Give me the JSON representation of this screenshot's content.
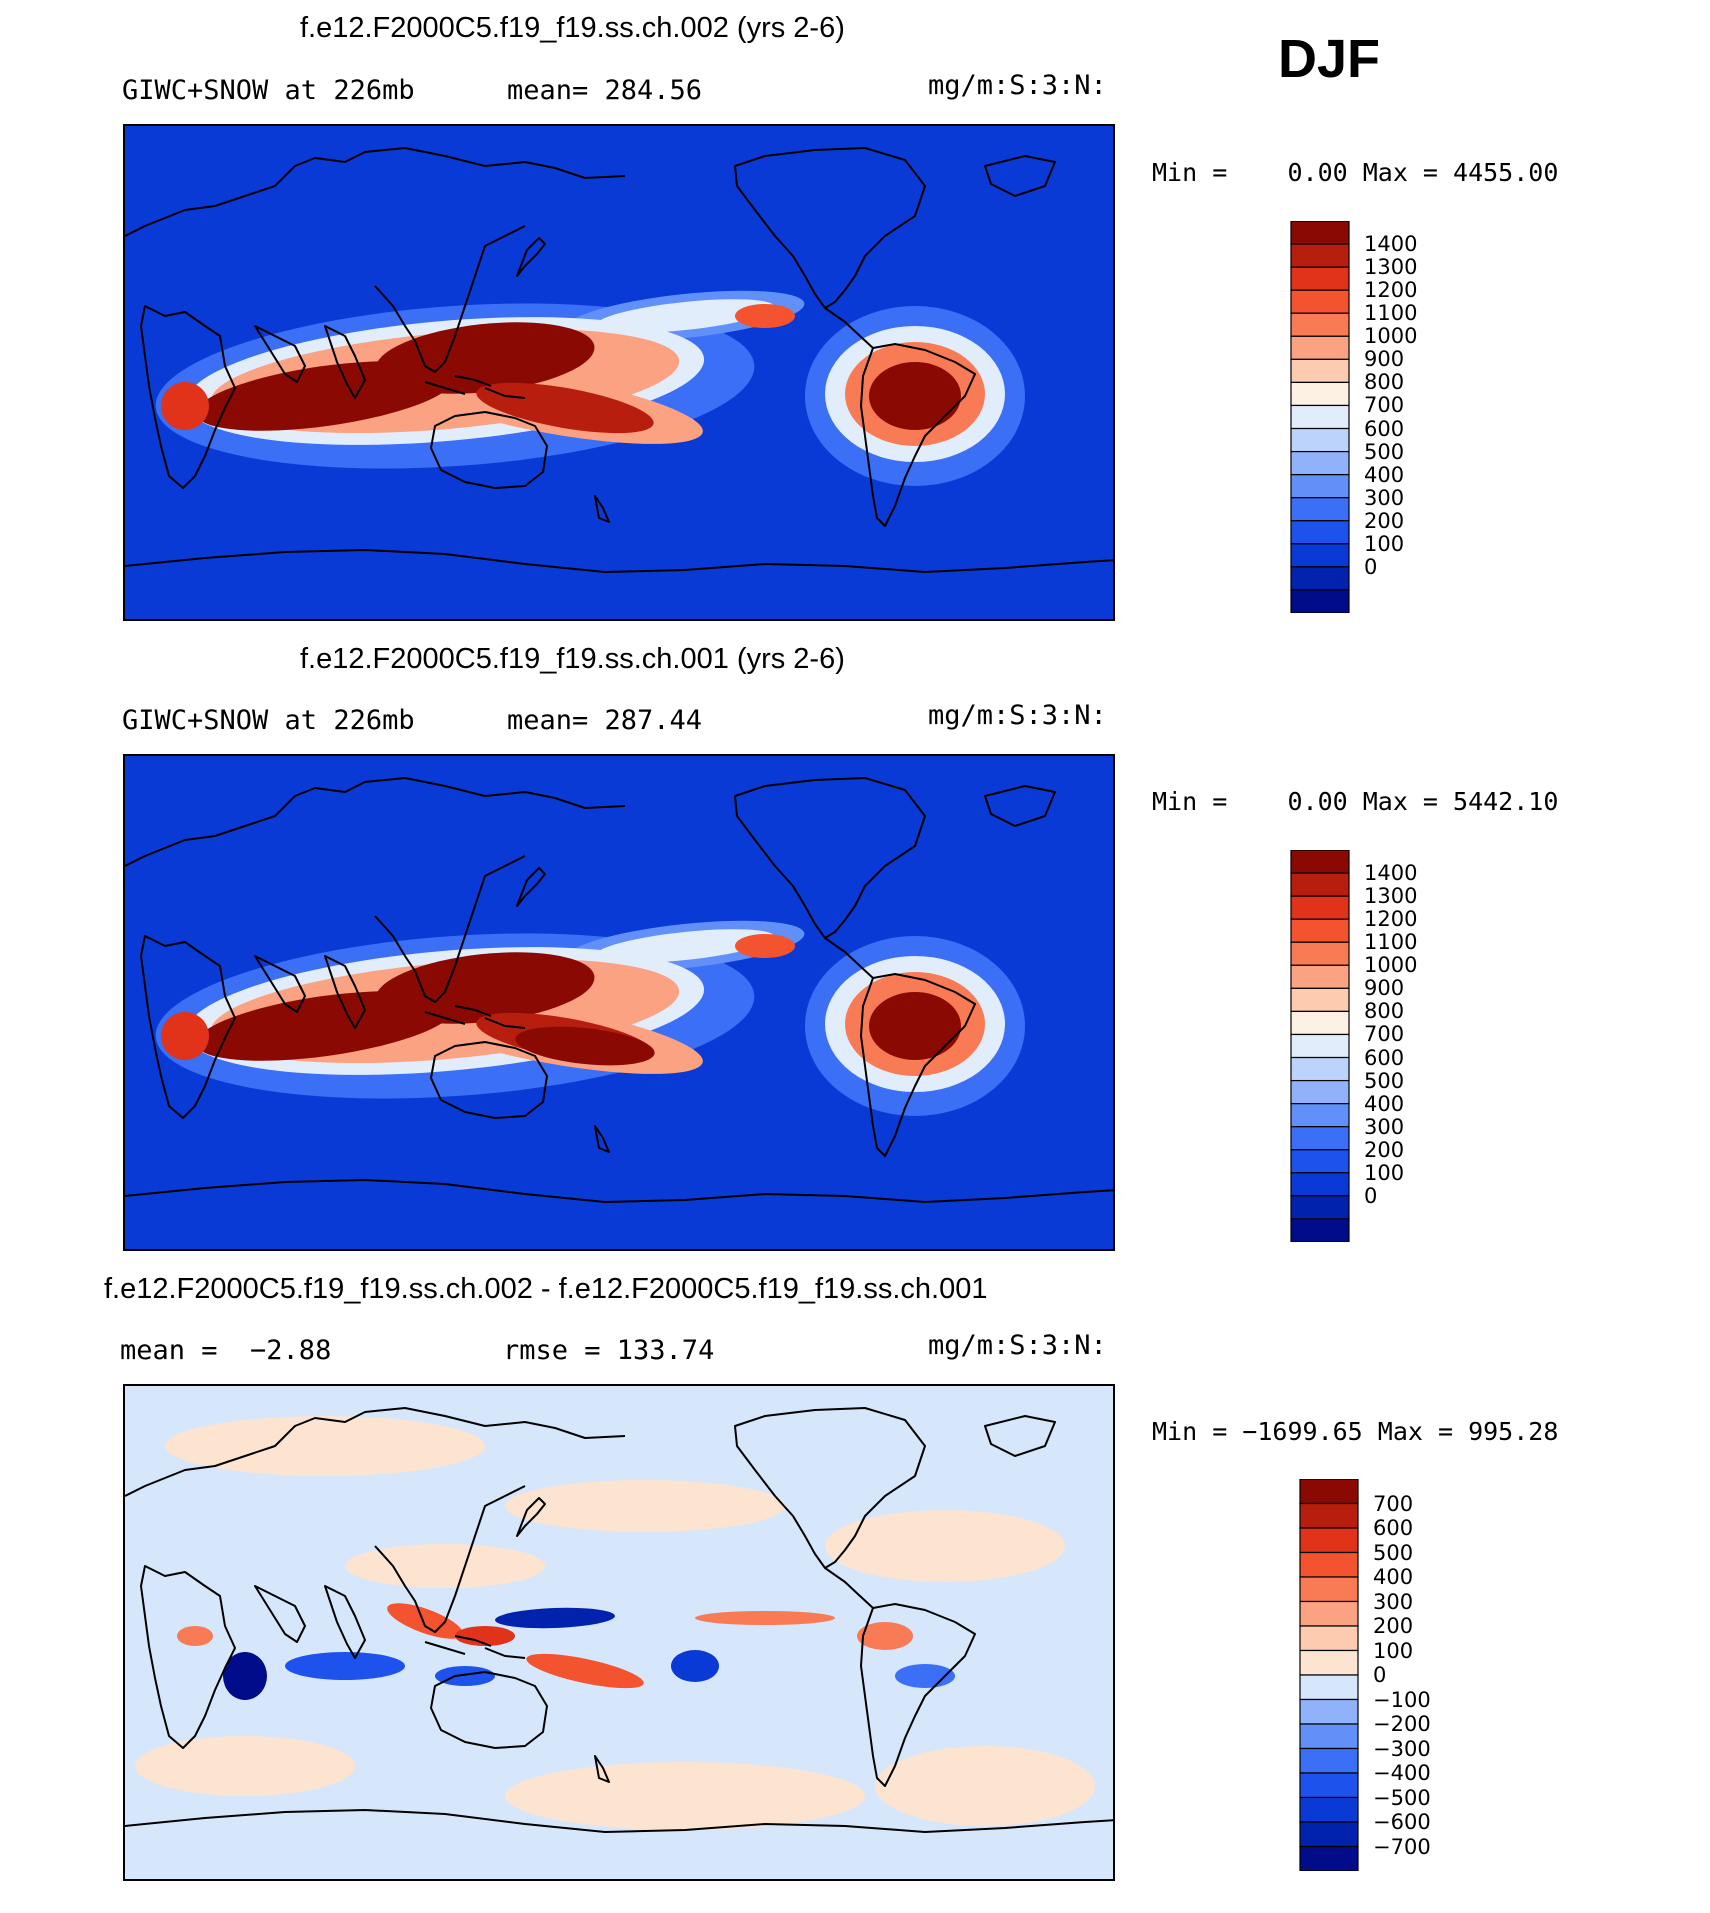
{
  "season": "DJF",
  "panels": [
    {
      "title": "f.e12.F2000C5.f19_f19.ss.ch.002 (yrs 2-6)",
      "left_label": "GIWC+SNOW at 226mb",
      "mid_label": "mean= 284.56",
      "units": "mg/m:S:3:N:",
      "minmax": "Min =    0.00 Max = 4455.00"
    },
    {
      "title": "f.e12.F2000C5.f19_f19.ss.ch.001 (yrs 2-6)",
      "left_label": "GIWC+SNOW at 226mb",
      "mid_label": "mean= 287.44",
      "units": "mg/m:S:3:N:",
      "minmax": "Min =    0.00 Max = 5442.10"
    },
    {
      "title": "f.e12.F2000C5.f19_f19.ss.ch.002 - f.e12.F2000C5.f19_f19.ss.ch.001",
      "left_label": "mean =  −2.88",
      "mid_label": "rmse = 133.74",
      "units": "mg/m:S:3:N:",
      "minmax": "Min = −1699.65 Max = 995.28"
    }
  ],
  "colors": {
    "abs_scale": [
      "#000c8a",
      "#0022ad",
      "#0a3ad6",
      "#1d52ec",
      "#3b6ff5",
      "#6090f8",
      "#8fb2fa",
      "#bcd3fb",
      "#e2edfc",
      "#fdf1e4",
      "#fccbb0",
      "#fba283",
      "#f87b55",
      "#f3532e",
      "#e0331a",
      "#b81e0d",
      "#8a0a03"
    ],
    "diff_scale": [
      "#000c8a",
      "#0022ad",
      "#0a3ad6",
      "#1d52ec",
      "#3b6ff5",
      "#6090f8",
      "#8fb2fa",
      "#d6e6fb",
      "#fde4d1",
      "#fccbb0",
      "#fba283",
      "#f87b55",
      "#f3532e",
      "#e0331a",
      "#b81e0d",
      "#8a0a03"
    ],
    "ocean_abs": "#0a3ad6",
    "ocean_diff": "#d6e6fb"
  },
  "chart_data": [
    {
      "type": "heatmap",
      "title": "f.e12.F2000C5.f19_f19.ss.ch.002 (yrs 2-6)",
      "variable": "GIWC+SNOW at 226mb",
      "units": "mg/m:S:3:N:",
      "mean": 284.56,
      "min": 0.0,
      "max": 4455.0,
      "colorbar_levels": [
        0,
        100,
        200,
        300,
        400,
        500,
        600,
        700,
        800,
        900,
        1000,
        1100,
        1200,
        1300,
        1400
      ],
      "colorbar_labels": [
        "1400",
        "1300",
        "1200",
        "1100",
        "1000",
        "900",
        "800",
        "700",
        "600",
        "500",
        "400",
        "300",
        "200",
        "100",
        "0"
      ]
    },
    {
      "type": "heatmap",
      "title": "f.e12.F2000C5.f19_f19.ss.ch.001 (yrs 2-6)",
      "variable": "GIWC+SNOW at 226mb",
      "units": "mg/m:S:3:N:",
      "mean": 287.44,
      "min": 0.0,
      "max": 5442.1,
      "colorbar_levels": [
        0,
        100,
        200,
        300,
        400,
        500,
        600,
        700,
        800,
        900,
        1000,
        1100,
        1200,
        1300,
        1400
      ],
      "colorbar_labels": [
        "1400",
        "1300",
        "1200",
        "1100",
        "1000",
        "900",
        "800",
        "700",
        "600",
        "500",
        "400",
        "300",
        "200",
        "100",
        "0"
      ]
    },
    {
      "type": "heatmap",
      "title": "f.e12.F2000C5.f19_f19.ss.ch.002 - f.e12.F2000C5.f19_f19.ss.ch.001",
      "units": "mg/m:S:3:N:",
      "mean": -2.88,
      "rmse": 133.74,
      "min": -1699.65,
      "max": 995.28,
      "colorbar_levels": [
        -700,
        -600,
        -500,
        -400,
        -300,
        -200,
        -100,
        0,
        100,
        200,
        300,
        400,
        500,
        600,
        700
      ],
      "colorbar_labels": [
        "700",
        "600",
        "500",
        "400",
        "300",
        "200",
        "100",
        "0",
        "−100",
        "−200",
        "−300",
        "−400",
        "−500",
        "−600",
        "−700"
      ]
    }
  ]
}
